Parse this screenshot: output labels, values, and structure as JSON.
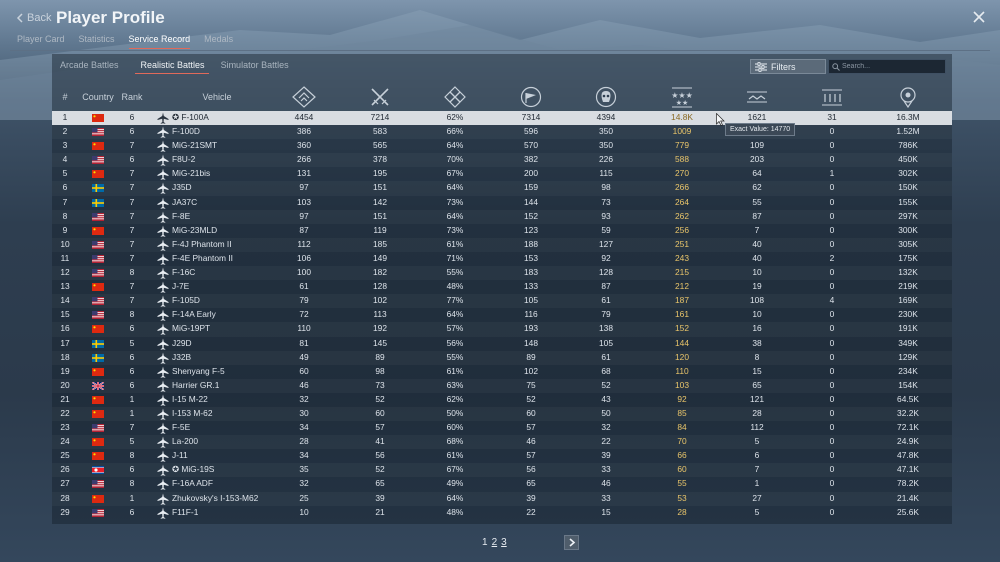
{
  "header": {
    "back_label": "Back",
    "title": "Player Profile",
    "tabs": [
      "Player Card",
      "Statistics",
      "Service Record",
      "Medals"
    ],
    "active_tab": "Service Record"
  },
  "subtabs": [
    "Arcade Battles",
    "Realistic Battles",
    "Simulator Battles"
  ],
  "active_subtab": "Realistic Battles",
  "toolbar": {
    "filters_label": "Filters",
    "search_placeholder": "Search..."
  },
  "columns": {
    "num": "#",
    "country": "Country",
    "rank": "Rank",
    "vehicle": "Vehicle"
  },
  "stat_icons": [
    "battles-icon",
    "crossed-swords-icon",
    "victories-icon",
    "respawns-flag-icon",
    "skull-kills-icon",
    "stars-score-icon",
    "air-kills-icon",
    "ground-kills-icon",
    "location-pin-icon"
  ],
  "tooltip": "Exact Value: 14770",
  "rows": [
    {
      "n": "1",
      "flag": "cn",
      "rank": "6",
      "vehicle": "✪ F-100A",
      "v": [
        "4454",
        "7214",
        "62%",
        "7314",
        "4394",
        "14.8K",
        "1621",
        "31",
        "16.3M"
      ]
    },
    {
      "n": "2",
      "flag": "us",
      "rank": "6",
      "vehicle": "F-100D",
      "v": [
        "386",
        "583",
        "66%",
        "596",
        "350",
        "1009",
        "113",
        "0",
        "1.52M"
      ]
    },
    {
      "n": "3",
      "flag": "cn",
      "rank": "7",
      "vehicle": "MiG-21SMT",
      "v": [
        "360",
        "565",
        "64%",
        "570",
        "350",
        "779",
        "109",
        "0",
        "786K"
      ]
    },
    {
      "n": "4",
      "flag": "us",
      "rank": "6",
      "vehicle": "F8U-2",
      "v": [
        "266",
        "378",
        "70%",
        "382",
        "226",
        "588",
        "203",
        "0",
        "450K"
      ]
    },
    {
      "n": "5",
      "flag": "cn",
      "rank": "7",
      "vehicle": "MiG-21bis",
      "v": [
        "131",
        "195",
        "67%",
        "200",
        "115",
        "270",
        "64",
        "1",
        "302K"
      ]
    },
    {
      "n": "6",
      "flag": "se",
      "rank": "7",
      "vehicle": "J35D",
      "v": [
        "97",
        "151",
        "64%",
        "159",
        "98",
        "266",
        "62",
        "0",
        "150K"
      ]
    },
    {
      "n": "7",
      "flag": "se",
      "rank": "7",
      "vehicle": "JA37C",
      "v": [
        "103",
        "142",
        "73%",
        "144",
        "73",
        "264",
        "55",
        "0",
        "155K"
      ]
    },
    {
      "n": "8",
      "flag": "us",
      "rank": "7",
      "vehicle": "F-8E",
      "v": [
        "97",
        "151",
        "64%",
        "152",
        "93",
        "262",
        "87",
        "0",
        "297K"
      ]
    },
    {
      "n": "9",
      "flag": "cn",
      "rank": "7",
      "vehicle": "MiG-23MLD",
      "v": [
        "87",
        "119",
        "73%",
        "123",
        "59",
        "256",
        "7",
        "0",
        "300K"
      ]
    },
    {
      "n": "10",
      "flag": "us",
      "rank": "7",
      "vehicle": "F-4J Phantom II",
      "v": [
        "112",
        "185",
        "61%",
        "188",
        "127",
        "251",
        "40",
        "0",
        "305K"
      ]
    },
    {
      "n": "11",
      "flag": "us",
      "rank": "7",
      "vehicle": "F-4E Phantom II",
      "v": [
        "106",
        "149",
        "71%",
        "153",
        "92",
        "243",
        "40",
        "2",
        "175K"
      ]
    },
    {
      "n": "12",
      "flag": "us",
      "rank": "8",
      "vehicle": "F-16C",
      "v": [
        "100",
        "182",
        "55%",
        "183",
        "128",
        "215",
        "10",
        "0",
        "132K"
      ]
    },
    {
      "n": "13",
      "flag": "cn",
      "rank": "7",
      "vehicle": "J-7E",
      "v": [
        "61",
        "128",
        "48%",
        "133",
        "87",
        "212",
        "19",
        "0",
        "219K"
      ]
    },
    {
      "n": "14",
      "flag": "us",
      "rank": "7",
      "vehicle": "F-105D",
      "v": [
        "79",
        "102",
        "77%",
        "105",
        "61",
        "187",
        "108",
        "4",
        "169K"
      ]
    },
    {
      "n": "15",
      "flag": "us",
      "rank": "8",
      "vehicle": "F-14A Early",
      "v": [
        "72",
        "113",
        "64%",
        "116",
        "79",
        "161",
        "10",
        "0",
        "230K"
      ]
    },
    {
      "n": "16",
      "flag": "cn",
      "rank": "6",
      "vehicle": "MiG-19PT",
      "v": [
        "110",
        "192",
        "57%",
        "193",
        "138",
        "152",
        "16",
        "0",
        "191K"
      ]
    },
    {
      "n": "17",
      "flag": "se",
      "rank": "5",
      "vehicle": "J29D",
      "v": [
        "81",
        "145",
        "56%",
        "148",
        "105",
        "144",
        "38",
        "0",
        "349K"
      ]
    },
    {
      "n": "18",
      "flag": "se",
      "rank": "6",
      "vehicle": "J32B",
      "v": [
        "49",
        "89",
        "55%",
        "89",
        "61",
        "120",
        "8",
        "0",
        "129K"
      ]
    },
    {
      "n": "19",
      "flag": "cn",
      "rank": "6",
      "vehicle": "Shenyang F-5",
      "v": [
        "60",
        "98",
        "61%",
        "102",
        "68",
        "110",
        "15",
        "0",
        "234K"
      ]
    },
    {
      "n": "20",
      "flag": "uk",
      "rank": "6",
      "vehicle": "Harrier GR.1",
      "v": [
        "46",
        "73",
        "63%",
        "75",
        "52",
        "103",
        "65",
        "0",
        "154K"
      ]
    },
    {
      "n": "21",
      "flag": "cn",
      "rank": "1",
      "vehicle": "I-15 M-22",
      "v": [
        "32",
        "52",
        "62%",
        "52",
        "43",
        "92",
        "121",
        "0",
        "64.5K"
      ]
    },
    {
      "n": "22",
      "flag": "cn",
      "rank": "1",
      "vehicle": "I-153 M-62",
      "v": [
        "30",
        "60",
        "50%",
        "60",
        "50",
        "85",
        "28",
        "0",
        "32.2K"
      ]
    },
    {
      "n": "23",
      "flag": "us",
      "rank": "7",
      "vehicle": "F-5E",
      "v": [
        "34",
        "57",
        "60%",
        "57",
        "32",
        "84",
        "112",
        "0",
        "72.1K"
      ]
    },
    {
      "n": "24",
      "flag": "cn",
      "rank": "5",
      "vehicle": "La-200",
      "v": [
        "28",
        "41",
        "68%",
        "46",
        "22",
        "70",
        "5",
        "0",
        "24.9K"
      ]
    },
    {
      "n": "25",
      "flag": "cn",
      "rank": "8",
      "vehicle": "J-11",
      "v": [
        "34",
        "56",
        "61%",
        "57",
        "39",
        "66",
        "6",
        "0",
        "47.8K"
      ]
    },
    {
      "n": "26",
      "flag": "kp",
      "rank": "6",
      "vehicle": "✪ MiG-19S",
      "v": [
        "35",
        "52",
        "67%",
        "56",
        "33",
        "60",
        "7",
        "0",
        "47.1K"
      ]
    },
    {
      "n": "27",
      "flag": "us",
      "rank": "8",
      "vehicle": "F-16A ADF",
      "v": [
        "32",
        "65",
        "49%",
        "65",
        "46",
        "55",
        "1",
        "0",
        "78.2K"
      ]
    },
    {
      "n": "28",
      "flag": "cn",
      "rank": "1",
      "vehicle": "Zhukovsky's I-153-M62",
      "v": [
        "25",
        "39",
        "64%",
        "39",
        "33",
        "53",
        "27",
        "0",
        "21.4K"
      ]
    },
    {
      "n": "29",
      "flag": "us",
      "rank": "6",
      "vehicle": "F11F-1",
      "v": [
        "10",
        "21",
        "48%",
        "22",
        "15",
        "28",
        "5",
        "0",
        "25.6K"
      ]
    }
  ],
  "pagination": {
    "pages": [
      "1",
      "2",
      "3"
    ],
    "current": "1"
  }
}
